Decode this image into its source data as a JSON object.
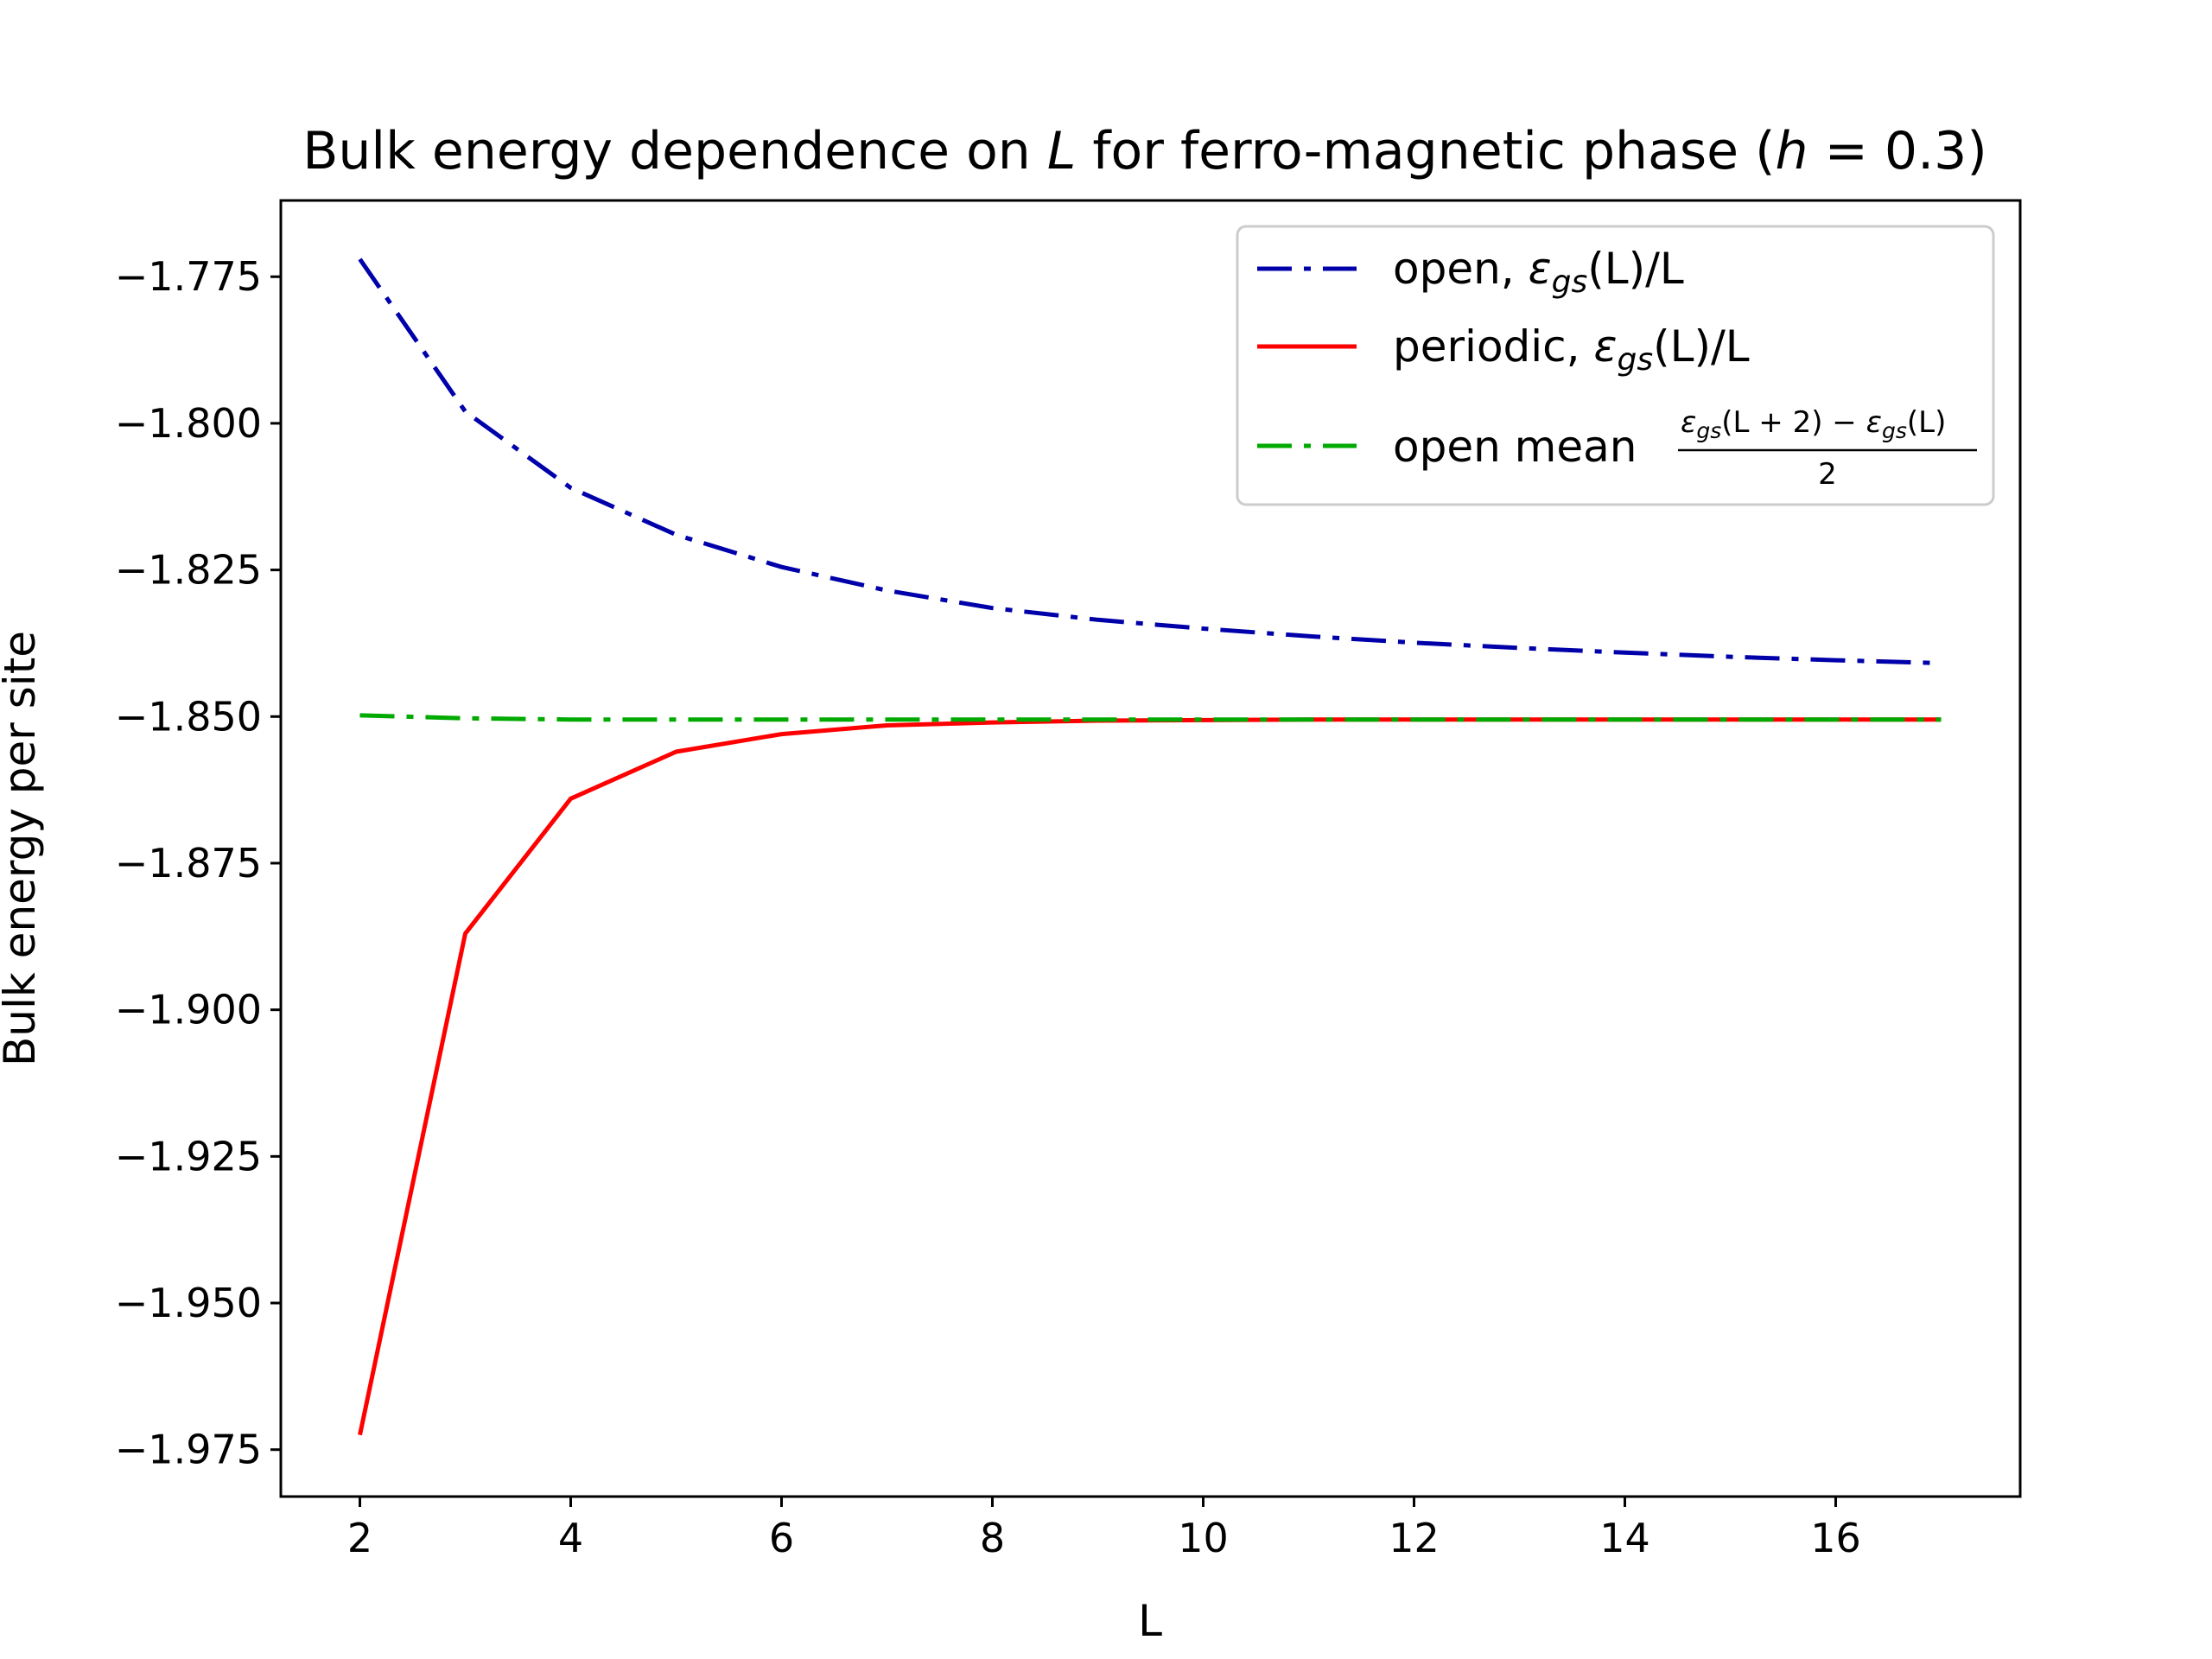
{
  "chart_data": {
    "type": "line",
    "title_parts": [
      "Bulk energy dependence on ",
      "L",
      " for ferro-magnetic phase (",
      "h",
      " = 0.3)"
    ],
    "xlabel": "L",
    "ylabel": "Bulk energy per site",
    "xlim": [
      1.25,
      17.75
    ],
    "ylim": [
      -1.983,
      -1.762
    ],
    "xticks": [
      2,
      4,
      6,
      8,
      10,
      12,
      14,
      16
    ],
    "yticks": [
      -1.775,
      -1.8,
      -1.825,
      -1.85,
      -1.875,
      -1.9,
      -1.925,
      -1.95,
      -1.975
    ],
    "xtick_labels": [
      "2",
      "4",
      "6",
      "8",
      "10",
      "12",
      "14",
      "16"
    ],
    "ytick_labels": [
      "−1.775",
      "−1.800",
      "−1.825",
      "−1.850",
      "−1.875",
      "−1.900",
      "−1.925",
      "−1.950",
      "−1.975"
    ],
    "x": [
      2,
      3,
      4,
      5,
      6,
      7,
      8,
      9,
      10,
      11,
      12,
      13,
      14,
      15,
      16,
      17
    ],
    "series": [
      {
        "key": "open",
        "color": "#0000aa",
        "style": "dashdot",
        "values": [
          -1.772,
          -1.798,
          -1.811,
          -1.819,
          -1.8245,
          -1.8285,
          -1.8315,
          -1.8335,
          -1.835,
          -1.8363,
          -1.8374,
          -1.8383,
          -1.8391,
          -1.8398,
          -1.8404,
          -1.8409
        ]
      },
      {
        "key": "periodic",
        "color": "#ff0000",
        "style": "solid",
        "values": [
          -1.9725,
          -1.887,
          -1.864,
          -1.856,
          -1.853,
          -1.8515,
          -1.851,
          -1.8507,
          -1.8506,
          -1.8505,
          -1.8505,
          -1.8505,
          -1.8505,
          -1.8505,
          -1.8505,
          -1.8505
        ]
      },
      {
        "key": "open_mean",
        "color": "#00aa00",
        "style": "dashdot",
        "values": [
          -1.8498,
          -1.8503,
          -1.8505,
          -1.8505,
          -1.8505,
          -1.8505,
          -1.8505,
          -1.8505,
          -1.8505,
          -1.8505,
          -1.8505,
          -1.8505,
          -1.8505,
          -1.8505,
          -1.8505,
          -1.8505
        ]
      }
    ],
    "legend": {
      "placement": "top-right",
      "open": {
        "prefix": "open, ",
        "eps": "ε",
        "sub": "gs",
        "suffix": "(L)/L"
      },
      "periodic": {
        "prefix": "periodic, ",
        "eps": "ε",
        "sub": "gs",
        "suffix": "(L)/L"
      },
      "open_mean": {
        "prefix": "open mean ",
        "num_a_eps": "ε",
        "num_a_sub": "gs",
        "num_a_arg": "(L + 2) − ",
        "num_b_eps": "ε",
        "num_b_sub": "gs",
        "num_b_arg": "(L)",
        "denominator": "2"
      }
    },
    "grid": false
  }
}
